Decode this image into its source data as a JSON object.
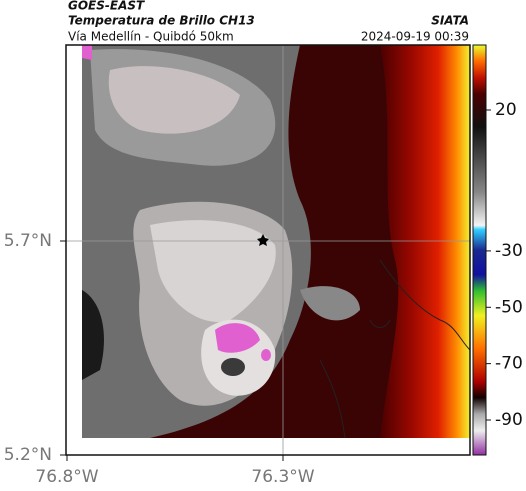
{
  "header": {
    "satellite": "GOES-EAST",
    "product": "Temperatura de Brillo CH13",
    "region": "Vía Medellín - Quibdó 50km",
    "source": "SIATA",
    "timestamp": "2024-09-19 00:39"
  },
  "map": {
    "lat_labels": [
      {
        "value": 5.7,
        "label": "5.7°N"
      },
      {
        "value": 5.2,
        "label": "5.2°N"
      }
    ],
    "lon_labels": [
      {
        "value": -76.8,
        "label": "76.8°W"
      },
      {
        "value": -76.3,
        "label": "76.3°W"
      }
    ]
  },
  "colorbar": {
    "ticks": [
      20,
      -30,
      -50,
      -70,
      -90
    ]
  }
}
